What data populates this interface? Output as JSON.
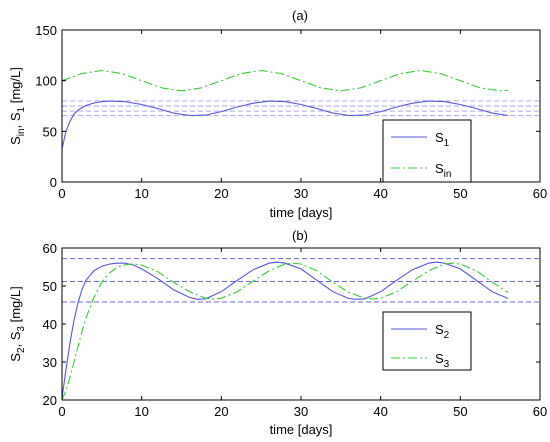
{
  "chart_data": [
    {
      "type": "line",
      "title": "(a)",
      "xlabel": "time [days]",
      "ylabel": "S_in, S_1 [mg/L]",
      "ylabel_parts": [
        "S",
        "in",
        ", S",
        "1",
        " [mg/L]"
      ],
      "xlim": [
        0,
        60
      ],
      "ylim": [
        0,
        150
      ],
      "xticks": [
        "0",
        "10",
        "20",
        "30",
        "40",
        "50",
        "60"
      ],
      "yticks": [
        "0",
        "50",
        "100",
        "150"
      ],
      "grid": false,
      "legend_position": "bottom-right",
      "series": [
        {
          "name": "S_1",
          "name_parts": [
            "S",
            "1"
          ],
          "color": "#5555dd",
          "style": "solid",
          "x": [
            0,
            0.5,
            1,
            1.5,
            2,
            3,
            4,
            5,
            6,
            8,
            10,
            12,
            14,
            16,
            18,
            20,
            22,
            24,
            26,
            28,
            30,
            32,
            34,
            36,
            38,
            40,
            42,
            44,
            46,
            48,
            50,
            52,
            54,
            56
          ],
          "y": [
            33,
            50,
            60,
            67,
            71,
            75.5,
            78,
            79.3,
            79.8,
            79.2,
            76.5,
            72.5,
            68,
            65.6,
            66,
            69.5,
            74,
            77.8,
            79.8,
            79.3,
            76.5,
            72.5,
            68,
            65.6,
            66,
            69.5,
            74,
            77.8,
            79.8,
            79.3,
            76.5,
            72.5,
            68,
            65.6
          ]
        },
        {
          "name": "S_in",
          "name_parts": [
            "S",
            "in"
          ],
          "color": "#33cc33",
          "style": "dashdot",
          "x": [
            0,
            2.5,
            5,
            7.5,
            10,
            12.5,
            15,
            17.5,
            20,
            22.5,
            25,
            27.5,
            30,
            32.5,
            35,
            37.5,
            40,
            42.5,
            45,
            47.5,
            50,
            52.5,
            55,
            56
          ],
          "y": [
            100,
            107.1,
            110,
            107.1,
            100,
            92.9,
            90,
            92.9,
            100,
            107.1,
            110,
            107.1,
            100,
            92.9,
            90,
            92.9,
            100,
            107.1,
            110,
            107.1,
            100,
            92.9,
            90,
            90.5
          ]
        }
      ],
      "reference_lines": [
        {
          "y": 80,
          "color": "#aaaaee",
          "style": "dashed"
        },
        {
          "y": 75,
          "color": "#aaaaee",
          "style": "dashed"
        },
        {
          "y": 70,
          "color": "#aaaaee",
          "style": "dashed"
        },
        {
          "y": 65.5,
          "color": "#aaaaee",
          "style": "dashed"
        }
      ]
    },
    {
      "type": "line",
      "title": "(b)",
      "xlabel": "time [days]",
      "ylabel": "S_2, S_3 [mg/L]",
      "ylabel_parts": [
        "S",
        "2",
        ", S",
        "3",
        " [mg/L]"
      ],
      "xlim": [
        0,
        60
      ],
      "ylim": [
        20,
        60
      ],
      "xticks": [
        "0",
        "10",
        "20",
        "30",
        "40",
        "50",
        "60"
      ],
      "yticks": [
        "20",
        "30",
        "40",
        "50",
        "60"
      ],
      "grid": false,
      "legend_position": "bottom-right",
      "series": [
        {
          "name": "S_2",
          "name_parts": [
            "S",
            "2"
          ],
          "color": "#5555dd",
          "style": "solid",
          "x": [
            0,
            0.5,
            1,
            1.5,
            2,
            2.5,
            3,
            4,
            5,
            6,
            7,
            8,
            9,
            10,
            12,
            14,
            16,
            17,
            18,
            20,
            22,
            24,
            26,
            27,
            28,
            30,
            32,
            34,
            36,
            37,
            38,
            40,
            42,
            44,
            46,
            47,
            48,
            50,
            52,
            54,
            56
          ],
          "y": [
            20.5,
            28,
            35,
            41,
            45.5,
            49,
            51.5,
            54,
            55.2,
            55.8,
            56,
            56,
            55.5,
            54.5,
            52,
            49,
            47,
            46.5,
            46.6,
            48.5,
            51.5,
            54.3,
            56,
            56.3,
            56,
            54.5,
            51.5,
            48.5,
            46.7,
            46.5,
            46.6,
            48.5,
            51.5,
            54.3,
            56,
            56.3,
            56,
            54.5,
            51.5,
            48.5,
            46.7
          ]
        },
        {
          "name": "S_3",
          "name_parts": [
            "S",
            "3"
          ],
          "color": "#33cc33",
          "style": "dashdot",
          "x": [
            0,
            0.5,
            1,
            1.5,
            2,
            2.5,
            3,
            4,
            5,
            6,
            7,
            8,
            9,
            10,
            12,
            14,
            16,
            18,
            19,
            20,
            22,
            24,
            26,
            28,
            29,
            30,
            32,
            34,
            36,
            38,
            39,
            40,
            42,
            44,
            46,
            48,
            49,
            50,
            52,
            54,
            56
          ],
          "y": [
            20,
            22.5,
            26,
            30,
            34,
            38,
            41.5,
            47,
            51,
            53.5,
            55,
            55.6,
            55.8,
            55.5,
            53.8,
            51,
            48.5,
            46.8,
            46.6,
            46.8,
            48.5,
            51.3,
            54,
            55.8,
            56,
            55.8,
            54,
            51,
            48.3,
            46.8,
            46.6,
            46.8,
            48.5,
            51.3,
            54,
            55.8,
            56,
            55.8,
            54,
            51,
            48.3
          ]
        }
      ],
      "reference_lines": [
        {
          "y": 57.2,
          "color": "#6666dd",
          "style": "dashed"
        },
        {
          "y": 51.2,
          "color": "#6666dd",
          "style": "dashed"
        },
        {
          "y": 45.8,
          "color": "#6666dd",
          "style": "dashed"
        }
      ]
    }
  ]
}
